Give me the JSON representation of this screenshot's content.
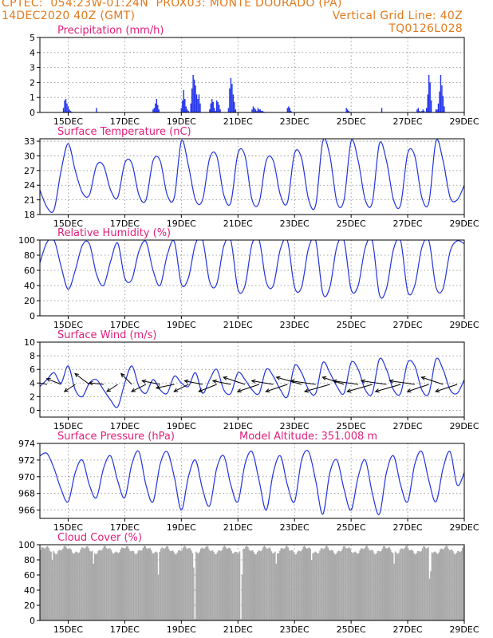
{
  "header": {
    "line1_left": "CPTEC:  054:23W-01:24N  PROX03: MONTE DOURADO (PA)",
    "line2_left": "14DEC2020 40Z (GMT)",
    "line2_right": "Vertical Grid Line: 40Z",
    "line3_right": "TQ0126L028"
  },
  "x_axis": {
    "range_hours": [
      0,
      360
    ],
    "tick_hours": [
      24,
      72,
      120,
      168,
      216,
      264,
      312,
      360
    ],
    "tick_labels": [
      "15DEC",
      "17DEC",
      "19DEC",
      "21DEC",
      "23DEC",
      "25DEC",
      "27DEC",
      "29DEC"
    ]
  },
  "colors": {
    "line": "#2233dd",
    "bars": "#2233ee",
    "cloud": "#a9a9a9",
    "title": "#e0207a",
    "header": "#e07a1f"
  },
  "chart_data": [
    {
      "id": "precip",
      "type": "bar",
      "title": "Precipitation (mm/h)",
      "ylim": [
        0,
        5
      ],
      "yticks": [
        0,
        1,
        2,
        3,
        4,
        5
      ],
      "x": [
        20,
        21,
        22,
        23,
        24,
        25,
        26,
        27,
        48,
        96,
        97,
        98,
        99,
        100,
        101,
        120,
        121,
        122,
        123,
        124,
        125,
        126,
        128,
        129,
        130,
        131,
        132,
        133,
        134,
        135,
        136,
        144,
        145,
        146,
        147,
        148,
        149,
        150,
        151,
        152,
        153,
        160,
        161,
        162,
        163,
        164,
        165,
        166,
        180,
        181,
        182,
        183,
        184,
        185,
        186,
        187,
        188,
        189,
        190,
        210,
        211,
        212,
        213,
        260,
        261,
        262,
        263,
        290,
        320,
        321,
        322,
        323,
        324,
        325,
        326,
        328,
        329,
        330,
        331,
        332,
        336,
        337,
        338,
        339,
        340,
        341,
        342,
        343
      ],
      "values": [
        0.3,
        0.8,
        0.9,
        0.6,
        0.4,
        0.2,
        0.1,
        0.05,
        0.3,
        0.2,
        0.3,
        0.6,
        0.9,
        0.5,
        0.2,
        0.3,
        0.8,
        1.5,
        0.9,
        0.4,
        0.2,
        0.1,
        0.6,
        1.6,
        2.5,
        2.2,
        1.8,
        1.2,
        0.9,
        1.2,
        0.6,
        0.2,
        0.6,
        0.9,
        0.7,
        0.3,
        0.1,
        0.8,
        0.7,
        0.5,
        0.2,
        0.3,
        1.6,
        2.3,
        1.9,
        1.2,
        0.7,
        0.2,
        0.2,
        0.4,
        0.3,
        0.2,
        0.1,
        0.3,
        0.2,
        0.2,
        0.1,
        0.1,
        0.05,
        0.3,
        0.4,
        0.3,
        0.1,
        0.3,
        0.2,
        0.1,
        0.05,
        0.3,
        0.2,
        0.3,
        0.1,
        0.05,
        0.1,
        0.2,
        0.1,
        0.3,
        1.2,
        2.5,
        2.0,
        0.8,
        0.2,
        0.2,
        0.6,
        1.4,
        2.5,
        1.8,
        1.1,
        0.4
      ]
    },
    {
      "id": "temp",
      "type": "line",
      "title": "Surface Temperature (nC)",
      "ylim": [
        18,
        33.5
      ],
      "yticks": [
        18,
        21,
        24,
        27,
        30,
        33
      ],
      "x": [
        0,
        6,
        12,
        18,
        24,
        30,
        36,
        42,
        48,
        54,
        60,
        66,
        72,
        78,
        84,
        90,
        96,
        102,
        108,
        114,
        120,
        126,
        132,
        138,
        144,
        150,
        156,
        162,
        168,
        174,
        180,
        186,
        192,
        198,
        204,
        210,
        216,
        222,
        228,
        234,
        240,
        246,
        252,
        258,
        264,
        270,
        276,
        282,
        288,
        294,
        300,
        306,
        312,
        318,
        324,
        330,
        336,
        342,
        348,
        354,
        360
      ],
      "values": [
        23.0,
        19.5,
        19.0,
        27.0,
        32.5,
        27.0,
        22.5,
        22.0,
        28.0,
        28.0,
        23.0,
        21.5,
        28.5,
        28.5,
        22.0,
        21.0,
        29.0,
        29.0,
        22.0,
        21.5,
        33.0,
        28.0,
        21.0,
        21.0,
        29.5,
        30.0,
        22.0,
        20.5,
        30.5,
        30.0,
        21.0,
        20.5,
        29.0,
        29.0,
        22.0,
        20.5,
        30.5,
        29.5,
        21.0,
        20.0,
        33.0,
        30.0,
        20.5,
        21.0,
        33.0,
        29.0,
        21.0,
        20.5,
        32.5,
        29.0,
        21.0,
        20.0,
        30.5,
        30.0,
        21.5,
        20.5,
        33.0,
        29.0,
        21.5,
        21.0,
        24.0
      ]
    },
    {
      "id": "rh",
      "type": "line",
      "title": "Relative Humidity (%)",
      "ylim": [
        0,
        100
      ],
      "yticks": [
        0,
        20,
        40,
        60,
        80,
        100
      ],
      "x": [
        0,
        6,
        12,
        18,
        24,
        30,
        36,
        42,
        48,
        54,
        60,
        66,
        72,
        78,
        84,
        90,
        96,
        102,
        108,
        114,
        120,
        126,
        132,
        138,
        144,
        150,
        156,
        162,
        168,
        174,
        180,
        186,
        192,
        198,
        204,
        210,
        216,
        222,
        228,
        234,
        240,
        246,
        252,
        258,
        264,
        270,
        276,
        282,
        288,
        294,
        300,
        306,
        312,
        318,
        324,
        330,
        336,
        342,
        348,
        354,
        360
      ],
      "values": [
        70,
        97,
        100,
        65,
        35,
        60,
        93,
        95,
        55,
        40,
        72,
        96,
        50,
        48,
        85,
        98,
        60,
        40,
        80,
        98,
        42,
        50,
        95,
        100,
        45,
        42,
        92,
        99,
        35,
        40,
        95,
        100,
        45,
        40,
        88,
        99,
        38,
        38,
        90,
        99,
        30,
        38,
        92,
        99,
        35,
        40,
        90,
        99,
        28,
        36,
        88,
        99,
        32,
        40,
        90,
        99,
        38,
        36,
        85,
        99,
        95
      ]
    },
    {
      "id": "wind",
      "type": "line",
      "title": "Surface Wind (m/s)",
      "ylim": [
        -1,
        10
      ],
      "yticks": [
        0,
        2,
        4,
        6,
        8,
        10
      ],
      "x": [
        0,
        6,
        12,
        18,
        24,
        30,
        36,
        42,
        48,
        54,
        60,
        66,
        72,
        78,
        84,
        90,
        96,
        102,
        108,
        114,
        120,
        126,
        132,
        138,
        144,
        150,
        156,
        162,
        168,
        174,
        180,
        186,
        192,
        198,
        204,
        210,
        216,
        222,
        228,
        234,
        240,
        246,
        252,
        258,
        264,
        270,
        276,
        282,
        288,
        294,
        300,
        306,
        312,
        318,
        324,
        330,
        336,
        342,
        348,
        354,
        360
      ],
      "values": [
        3.5,
        4.5,
        5.5,
        4.0,
        6.5,
        3.0,
        2.0,
        4.0,
        4.5,
        3.0,
        1.5,
        0.5,
        4.0,
        6.5,
        3.5,
        2.5,
        4.5,
        3.0,
        2.5,
        5.0,
        4.0,
        3.5,
        5.5,
        2.5,
        4.5,
        6.0,
        3.0,
        2.5,
        5.5,
        4.5,
        3.0,
        2.5,
        6.0,
        5.0,
        3.0,
        2.0,
        6.5,
        5.5,
        3.0,
        2.5,
        7.0,
        5.5,
        3.5,
        2.5,
        7.0,
        6.0,
        3.0,
        2.5,
        7.5,
        6.0,
        3.0,
        2.5,
        7.0,
        6.5,
        3.0,
        2.5,
        7.5,
        6.0,
        3.0,
        2.5,
        4.5
      ],
      "arrows": {
        "x": [
          6,
          18,
          30,
          42,
          54,
          66,
          78,
          90,
          102,
          114,
          126,
          138,
          150,
          162,
          174,
          186,
          198,
          210,
          222,
          234,
          246,
          258,
          270,
          282,
          294,
          306,
          318,
          330,
          342,
          354
        ],
        "u": [
          -2.5,
          -2.0,
          -1.5,
          -2.0,
          -2.0,
          -1.5,
          -1.5,
          -2.0,
          -2.5,
          -2.5,
          -2.0,
          -2.5,
          -2.5,
          -2.5,
          -3.0,
          -3.0,
          -3.0,
          -3.0,
          -3.5,
          -3.5,
          -3.5,
          -3.0,
          -3.5,
          -3.5,
          -3.5,
          -3.5,
          -3.5,
          -3.0,
          -3.0,
          -3.0
        ],
        "v": [
          0.5,
          0.8,
          -1.0,
          1.5,
          0.2,
          -1.0,
          1.5,
          -1.0,
          0.5,
          -0.5,
          -1.0,
          0.5,
          -1.0,
          0.5,
          1.0,
          -1.0,
          0.5,
          -1.0,
          1.0,
          0.5,
          -1.0,
          1.0,
          0.5,
          -1.0,
          0.5,
          -1.0,
          0.5,
          -1.0,
          1.0,
          -1.0
        ]
      }
    },
    {
      "id": "pres",
      "type": "line",
      "title": "Surface Pressure (hPa)",
      "annotation": "Model Altitude: 351.008 m",
      "ylim": [
        965,
        974
      ],
      "yticks": [
        966,
        968,
        970,
        972,
        974
      ],
      "x": [
        0,
        6,
        12,
        18,
        24,
        30,
        36,
        42,
        48,
        54,
        60,
        66,
        72,
        78,
        84,
        90,
        96,
        102,
        108,
        114,
        120,
        126,
        132,
        138,
        144,
        150,
        156,
        162,
        168,
        174,
        180,
        186,
        192,
        198,
        204,
        210,
        216,
        222,
        228,
        234,
        240,
        246,
        252,
        258,
        264,
        270,
        276,
        282,
        288,
        294,
        300,
        306,
        312,
        318,
        324,
        330,
        336,
        342,
        348,
        354,
        360
      ],
      "values": [
        972.5,
        972.8,
        971.0,
        968.5,
        967.0,
        970.5,
        972.0,
        969.0,
        967.5,
        971.0,
        972.5,
        969.5,
        967.5,
        971.5,
        973.0,
        969.0,
        967.0,
        971.5,
        973.0,
        970.0,
        966.0,
        970.0,
        972.0,
        968.5,
        966.5,
        971.0,
        972.5,
        969.0,
        967.0,
        971.5,
        973.0,
        969.5,
        966.0,
        970.5,
        972.5,
        969.0,
        967.0,
        972.0,
        973.0,
        969.5,
        965.5,
        970.5,
        972.0,
        968.5,
        966.0,
        970.0,
        972.0,
        968.0,
        965.5,
        970.5,
        972.5,
        969.0,
        967.0,
        971.5,
        973.0,
        969.5,
        967.0,
        971.0,
        973.0,
        969.0,
        970.5
      ]
    },
    {
      "id": "cloud",
      "type": "bar",
      "title": "Cloud Cover (%)",
      "ylim": [
        0,
        100
      ],
      "yticks": [
        0,
        20,
        40,
        60,
        80,
        100
      ],
      "x_start": 0,
      "x_step": 1,
      "values_summary": "hourly, mostly 90-98 % with dips",
      "dips": [
        [
          10,
          80
        ],
        [
          45,
          75
        ],
        [
          100,
          60
        ],
        [
          130,
          70
        ],
        [
          131,
          2
        ],
        [
          170,
          2
        ],
        [
          171,
          60
        ],
        [
          200,
          75
        ],
        [
          230,
          80
        ],
        [
          300,
          75
        ],
        [
          330,
          55
        ],
        [
          331,
          65
        ]
      ]
    }
  ]
}
